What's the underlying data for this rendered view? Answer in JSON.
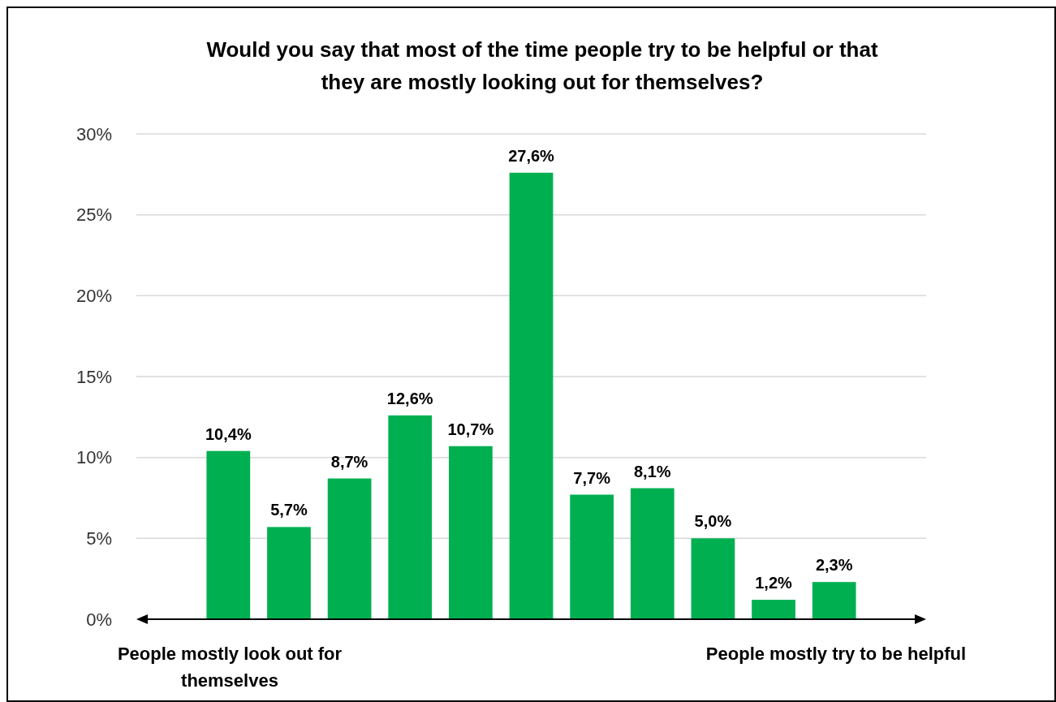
{
  "chart_data": {
    "type": "bar",
    "title": "Would you say that most of the time people try to be helpful or that they are mostly looking out for themselves?",
    "categories": [
      null,
      null,
      null,
      null,
      null,
      null,
      null,
      null,
      null,
      null,
      null
    ],
    "values": [
      10.4,
      5.7,
      8.7,
      12.6,
      10.7,
      27.6,
      7.7,
      8.1,
      5.0,
      1.2,
      2.3
    ],
    "value_labels": [
      "10,4%",
      "5,7%",
      "8,7%",
      "12,6%",
      "10,7%",
      "27,6%",
      "7,7%",
      "8,1%",
      "5,0%",
      "1,2%",
      "2,3%"
    ],
    "color": "#00b050",
    "ylim": [
      0,
      30
    ],
    "yticks": [
      {
        "value": 0,
        "label": "0%"
      },
      {
        "value": 5,
        "label": "5%"
      },
      {
        "value": 10,
        "label": "10%"
      },
      {
        "value": 15,
        "label": "15%"
      },
      {
        "value": 20,
        "label": "20%"
      },
      {
        "value": 25,
        "label": "25%"
      },
      {
        "value": 30,
        "label": "30%"
      }
    ],
    "grid": "y",
    "annotations": [
      "People mostly look out for themselves",
      "People mostly try to be helpful"
    ]
  }
}
